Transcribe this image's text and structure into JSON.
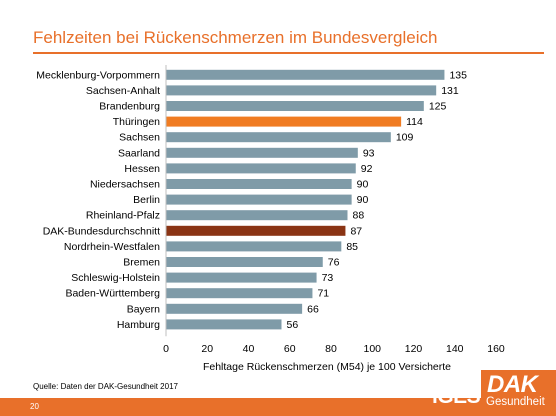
{
  "slide": {
    "title": "Fehlzeiten bei Rückenschmerzen im Bundesvergleich",
    "source": "Quelle: Daten der DAK-Gesundheit 2017",
    "page_number": "20",
    "logo_iges": "iGES",
    "logo_dak": "DAK",
    "logo_dak_sub": "Gesundheit"
  },
  "colors": {
    "accent": "#e8702a",
    "bar_default": "#7f9ba8",
    "bar_highlight_state": "#f07c22",
    "bar_average": "#8a3414"
  },
  "chart_data": {
    "type": "bar",
    "orientation": "horizontal",
    "categories": [
      "Mecklenburg-Vorpommern",
      "Sachsen-Anhalt",
      "Brandenburg",
      "Thüringen",
      "Sachsen",
      "Saarland",
      "Hessen",
      "Niedersachsen",
      "Berlin",
      "Rheinland-Pfalz",
      "DAK-Bundesdurchschnitt",
      "Nordrhein-Westfalen",
      "Bremen",
      "Schleswig-Holstein",
      "Baden-Württemberg",
      "Bayern",
      "Hamburg"
    ],
    "values": [
      135,
      131,
      125,
      114,
      109,
      93,
      92,
      90,
      90,
      88,
      87,
      85,
      76,
      73,
      71,
      66,
      56
    ],
    "highlight": {
      "Thüringen": "bar_highlight_state",
      "DAK-Bundesdurchschnitt": "bar_average"
    },
    "xlabel": "Fehltage Rückenschmerzen (M54) je 100 Versicherte",
    "xlim": [
      0,
      160
    ],
    "xticks": [
      0,
      20,
      40,
      60,
      80,
      100,
      120,
      140,
      160
    ],
    "grid": false,
    "data_labels": true
  }
}
